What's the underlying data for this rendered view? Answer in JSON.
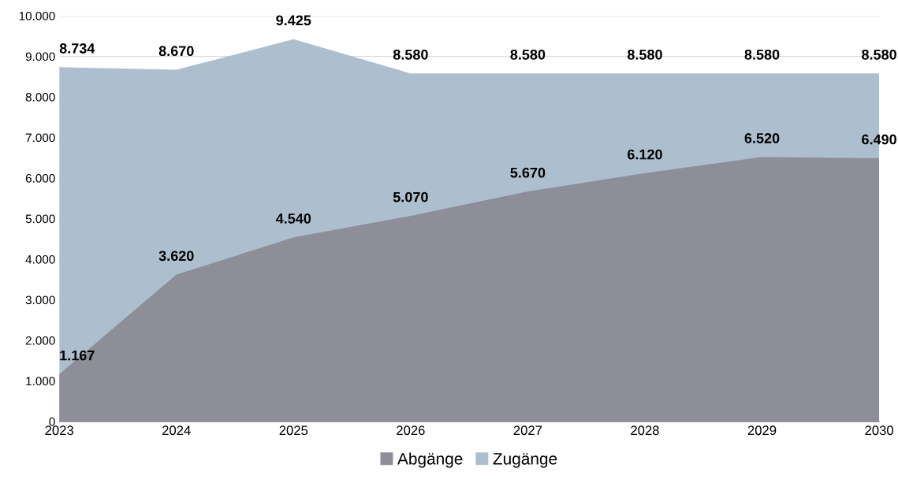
{
  "chart_data": {
    "type": "area",
    "categories": [
      "2023",
      "2024",
      "2025",
      "2026",
      "2027",
      "2028",
      "2029",
      "2030"
    ],
    "series": [
      {
        "name": "Abgänge",
        "color": "#8e8e98",
        "values": [
          1167,
          3620,
          4540,
          5070,
          5670,
          6120,
          6520,
          6490
        ],
        "value_labels": [
          "1.167",
          "3.620",
          "4.540",
          "5.070",
          "5.670",
          "6.120",
          "6.520",
          "6.490"
        ]
      },
      {
        "name": "Zugänge",
        "color": "#adbfcf",
        "values": [
          8734,
          8670,
          9425,
          8580,
          8580,
          8580,
          8580,
          8580
        ],
        "value_labels": [
          "8.734",
          "8.670",
          "9.425",
          "8.580",
          "8.580",
          "8.580",
          "8.580",
          "8.580"
        ]
      }
    ],
    "ylim": [
      0,
      10000
    ],
    "yticks": [
      0,
      {
        "value": 1000,
        "label": "1.000"
      },
      {
        "value": 2000,
        "label": "2.000"
      },
      {
        "value": 3000,
        "label": "3.000"
      },
      {
        "value": 4000,
        "label": "4.000"
      },
      {
        "value": 5000,
        "label": "5.000"
      },
      {
        "value": 6000,
        "label": "6.000"
      },
      {
        "value": 7000,
        "label": "7.000"
      },
      {
        "value": 8000,
        "label": "8.000"
      },
      {
        "value": 9000,
        "label": "9.000"
      },
      {
        "value": 10000,
        "label": "10.000"
      }
    ],
    "grid": "y",
    "legend": "bottom"
  }
}
